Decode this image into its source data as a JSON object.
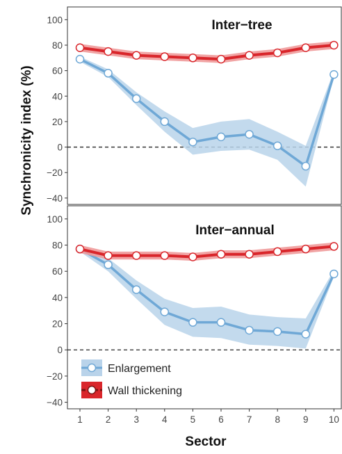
{
  "chart_data": {
    "type": "line",
    "ylabel": "Synchronicity index (%)",
    "xlabel": "Sector",
    "x": [
      1,
      2,
      3,
      4,
      5,
      6,
      7,
      8,
      9,
      10
    ],
    "ylim": [
      -45,
      110
    ],
    "yticks": [
      -40,
      -20,
      0,
      20,
      40,
      60,
      80,
      100
    ],
    "grid": false,
    "reference_line": 0,
    "legend_position": "bottom-left",
    "colors": {
      "enlargement_line": "#6fa8d6",
      "enlargement_band": "#b9d3ea",
      "wall_line": "#d9262b",
      "wall_band": "#ef9a9a"
    },
    "legend": [
      {
        "label": "Enlargement",
        "series": "enlargement"
      },
      {
        "label": "Wall thickening",
        "series": "wall"
      }
    ],
    "panels": [
      {
        "title": "Inter-tree",
        "series": [
          {
            "key": "enlargement",
            "name": "Enlargement",
            "values": [
              69,
              58,
              38,
              20,
              4,
              8,
              10,
              1,
              -15,
              57
            ],
            "lower": [
              67,
              55,
              33,
              12,
              -6,
              -3,
              -2,
              -10,
              -31,
              55
            ],
            "upper": [
              71,
              61,
              43,
              28,
              15,
              20,
              22,
              12,
              1,
              60
            ]
          },
          {
            "key": "wall",
            "name": "Wall thickening",
            "values": [
              78,
              75,
              72,
              71,
              70,
              69,
              72,
              74,
              78,
              80
            ],
            "lower": [
              75,
              72,
              69,
              68,
              67,
              66,
              69,
              71,
              75,
              77
            ],
            "upper": [
              81,
              78,
              75,
              74,
              73,
              72,
              75,
              77,
              81,
              83
            ]
          }
        ]
      },
      {
        "title": "Inter-annual",
        "series": [
          {
            "key": "enlargement",
            "name": "Enlargement",
            "values": [
              77,
              65,
              46,
              29,
              21,
              21,
              15,
              14,
              12,
              58
            ],
            "lower": [
              75,
              60,
              39,
              19,
              10,
              9,
              4,
              3,
              1,
              56
            ],
            "upper": [
              79,
              70,
              53,
              39,
              32,
              33,
              27,
              25,
              24,
              61
            ]
          },
          {
            "key": "wall",
            "name": "Wall thickening",
            "values": [
              77,
              72,
              72,
              72,
              71,
              73,
              73,
              75,
              77,
              79
            ],
            "lower": [
              74,
              69,
              69,
              69,
              68,
              70,
              70,
              72,
              74,
              76
            ],
            "upper": [
              80,
              75,
              75,
              75,
              74,
              76,
              76,
              78,
              80,
              82
            ]
          }
        ]
      }
    ]
  }
}
